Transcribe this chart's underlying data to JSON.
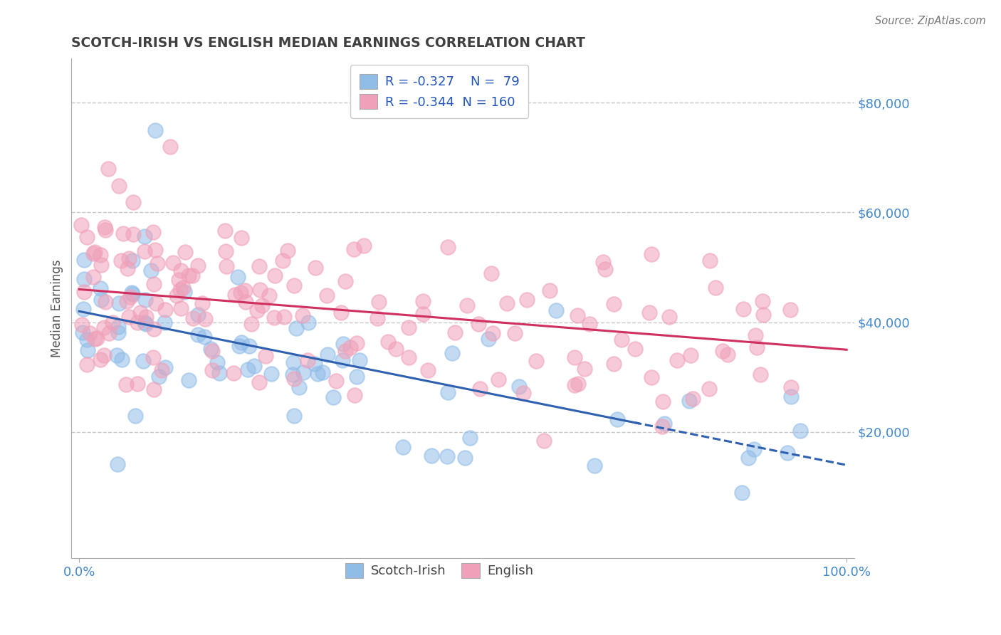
{
  "title": "SCOTCH-IRISH VS ENGLISH MEDIAN EARNINGS CORRELATION CHART",
  "source_text": "Source: ZipAtlas.com",
  "ylabel": "Median Earnings",
  "blue_R": -0.327,
  "blue_N": 79,
  "pink_R": -0.344,
  "pink_N": 160,
  "blue_color": "#90bce8",
  "pink_color": "#f0a0b8",
  "blue_line_color": "#3060b0",
  "pink_line_color": "#d03060",
  "grid_color": "#c8c8c8",
  "title_color": "#404040",
  "axis_label_color": "#4488cc",
  "legend_text_color": "#2255bb",
  "blue_intercept": 42000,
  "blue_slope": -280,
  "pink_intercept": 46000,
  "pink_slope": -110,
  "blue_dash_start": 73,
  "xlim_min": -1,
  "xlim_max": 101,
  "ylim_min": -3000,
  "ylim_max": 88000
}
